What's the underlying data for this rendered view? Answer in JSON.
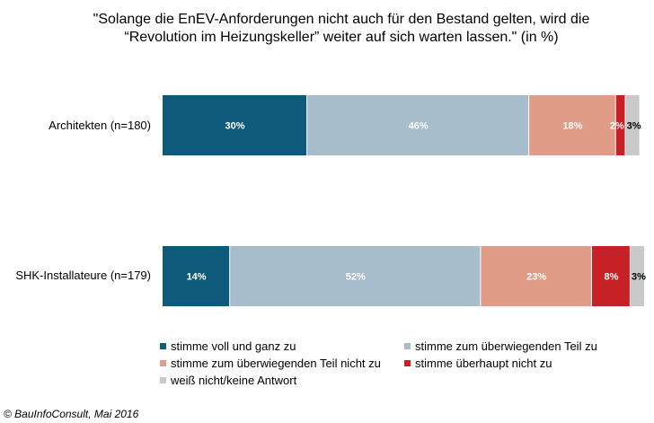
{
  "chart_data": {
    "type": "bar",
    "orientation": "horizontal",
    "stacked": true,
    "title": "\"Solange die EnEV-Anforderungen nicht auch für den Bestand gelten, wird die “Revolution im Heizungskeller” weiter auf sich warten lassen.\" (in %)",
    "title_lines": [
      "\"Solange die EnEV-Anforderungen nicht auch für den Bestand gelten, wird die",
      "“Revolution im Heizungskeller” weiter auf sich warten lassen.\" (in %)"
    ],
    "categories": [
      "Architekten (n=180)",
      "SHK-Installateure (n=179)"
    ],
    "series": [
      {
        "name": "stimme voll und ganz zu",
        "color": "#0e5a7b",
        "label_color": "#ffffff",
        "values": [
          30,
          14
        ],
        "labels": [
          "30%",
          "14%"
        ]
      },
      {
        "name": "stimme zum überwiegenden Teil zu",
        "color": "#a8bdcc",
        "label_color": "#ffffff",
        "values": [
          46,
          52
        ],
        "labels": [
          "46%",
          "52%"
        ]
      },
      {
        "name": "stimme zum überwiegenden Teil nicht zu",
        "color": "#e09c86",
        "label_color": "#ffffff",
        "values": [
          18,
          23
        ],
        "labels": [
          "18%",
          "23%"
        ]
      },
      {
        "name": "stimme überhaupt nicht zu",
        "color": "#c62127",
        "label_color": "#ffffff",
        "values": [
          2,
          8
        ],
        "labels": [
          "2%",
          "8%"
        ]
      },
      {
        "name": "weiß nicht/keine Antwort",
        "color": "#c9c9c9",
        "label_color": "#000000",
        "values": [
          3,
          3
        ],
        "labels": [
          "3%",
          "3%"
        ]
      }
    ],
    "xlim": [
      0,
      100
    ],
    "grid": false,
    "legend_position": "bottom"
  },
  "footer": {
    "copyright": "© BauInfoConsult, Mai 2016"
  }
}
